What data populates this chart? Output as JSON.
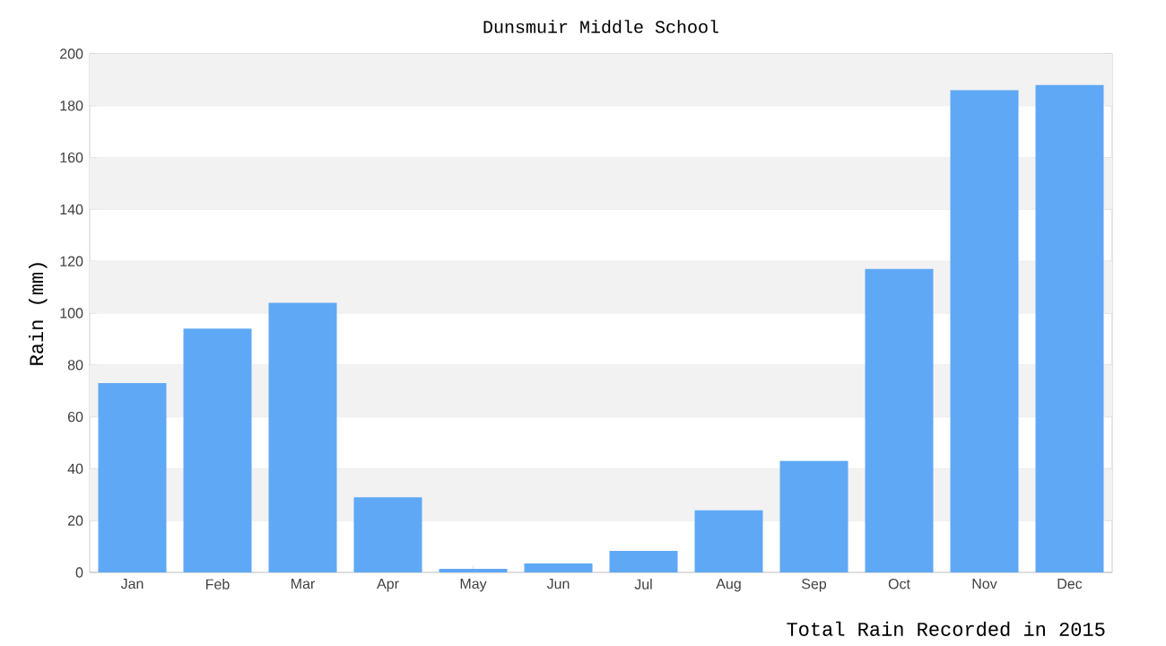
{
  "chart_data": {
    "type": "bar",
    "title": "Dunsmuir Middle School",
    "xlabel": "Total Rain Recorded in 2015",
    "ylabel": "Rain (mm)",
    "categories": [
      "Jan",
      "Feb",
      "Mar",
      "Apr",
      "May",
      "Jun",
      "Jul",
      "Aug",
      "Sep",
      "Oct",
      "Nov",
      "Dec"
    ],
    "values": [
      73,
      94,
      104,
      29,
      1.4,
      3.5,
      8.3,
      24,
      43,
      117,
      186,
      188
    ],
    "color": "#5fa8f5",
    "ylim": [
      0,
      200
    ],
    "yticks": [
      0,
      20,
      40,
      60,
      80,
      100,
      120,
      140,
      160,
      180,
      200
    ],
    "grid": "y"
  }
}
